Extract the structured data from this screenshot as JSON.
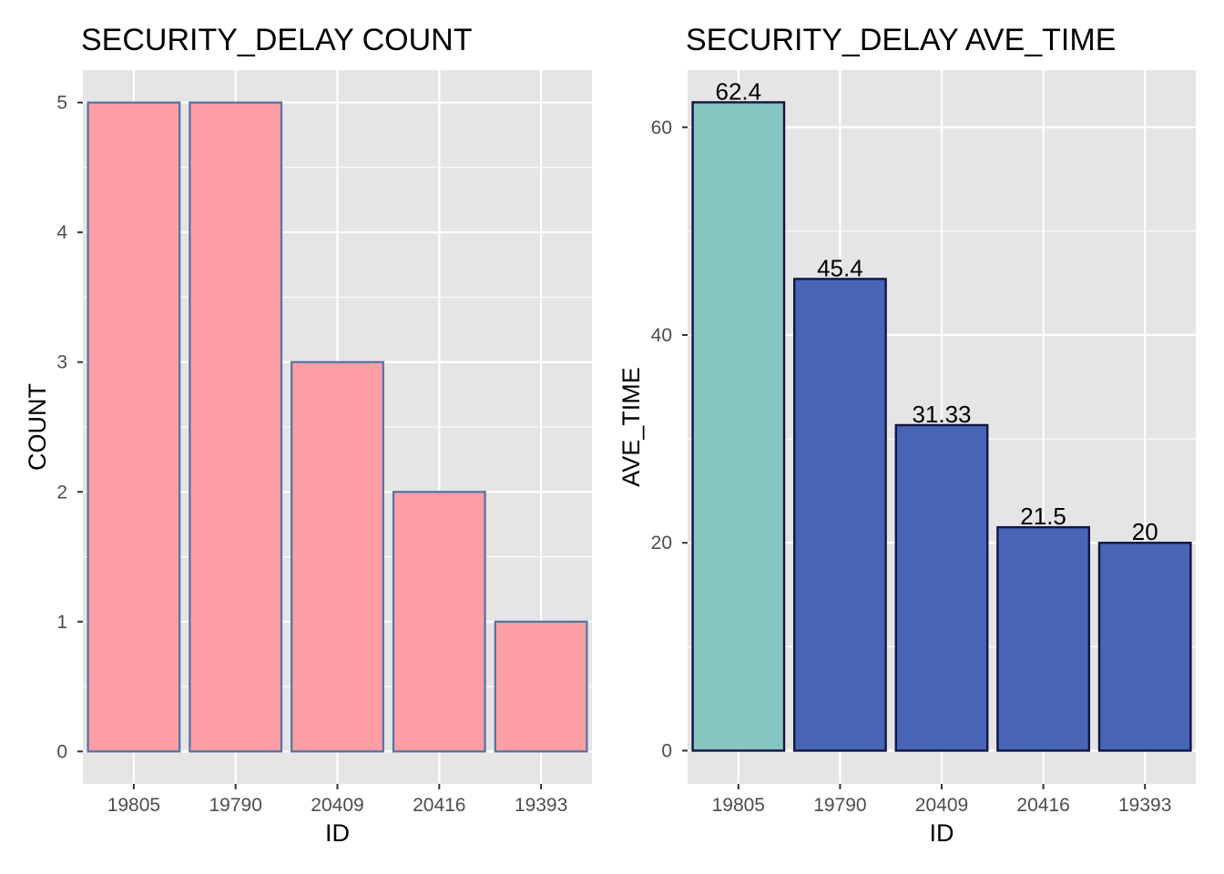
{
  "chart_data": [
    {
      "type": "bar",
      "title": "SECURITY_DELAY COUNT",
      "xlabel": "ID",
      "ylabel": "COUNT",
      "categories": [
        "19805",
        "19790",
        "20409",
        "20416",
        "19393"
      ],
      "values": [
        5,
        5,
        3,
        2,
        1
      ],
      "ylim": [
        -0.25,
        5.25
      ],
      "yticks": [
        0,
        1,
        2,
        3,
        4,
        5
      ],
      "ytick_labels": [
        "0",
        "1",
        "2",
        "3",
        "4",
        "5"
      ],
      "grid": true,
      "legend": "none",
      "data_labels": [],
      "colors": {
        "panel_background": "#e5e5e5",
        "grid": "#ffffff",
        "bar_fill": [
          "#fc9ea3",
          "#fc9ea3",
          "#fc9ea3",
          "#fc9ea3",
          "#fc9ea3"
        ],
        "bar_outline": "#4f73a4"
      }
    },
    {
      "type": "bar",
      "title": "SECURITY_DELAY AVE_TIME",
      "xlabel": "ID",
      "ylabel": "AVE_TIME",
      "categories": [
        "19805",
        "19790",
        "20409",
        "20416",
        "19393"
      ],
      "values": [
        62.4,
        45.4,
        31.33,
        21.5,
        20
      ],
      "ylim": [
        -3.2,
        65.5
      ],
      "yticks": [
        0,
        20,
        40,
        60
      ],
      "ytick_labels": [
        "0",
        "20",
        "40",
        "60"
      ],
      "grid": true,
      "legend": "none",
      "data_labels": [
        "62.4",
        "45.4",
        "31.33",
        "21.5",
        "20"
      ],
      "colors": {
        "panel_background": "#e5e5e5",
        "grid": "#ffffff",
        "bar_fill": [
          "#86c6c0",
          "#4865b5",
          "#4865b5",
          "#4865b5",
          "#4865b5"
        ],
        "bar_outline": "#121545"
      }
    }
  ]
}
